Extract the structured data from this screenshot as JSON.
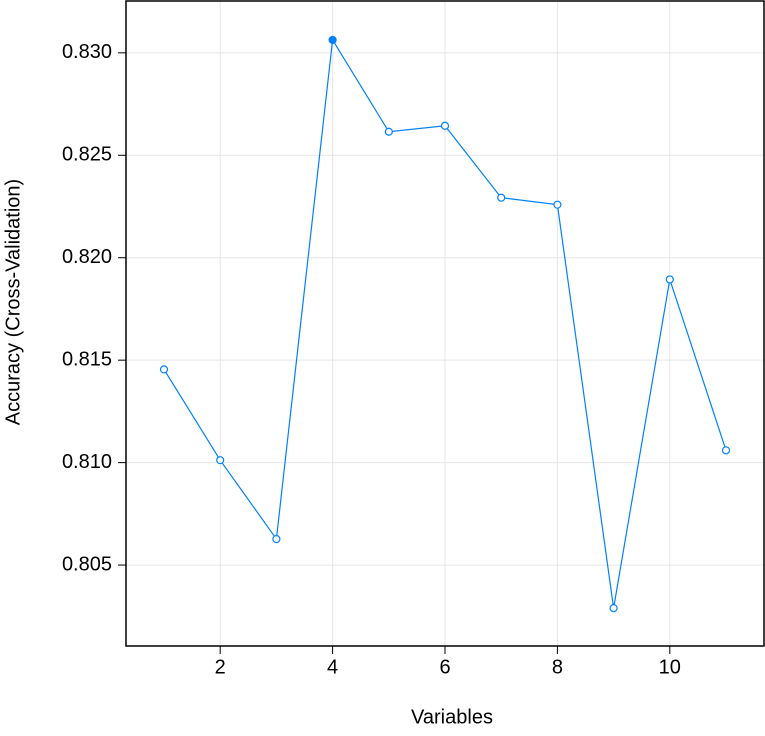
{
  "chart_data": {
    "type": "line",
    "x_label": "Variables",
    "y_label": "Accuracy (Cross-Validation)",
    "x": [
      1,
      2,
      3,
      4,
      5,
      6,
      7,
      8,
      9,
      10,
      11
    ],
    "series": [
      {
        "color": "#0080ff",
        "values": [
          0.81455,
          0.81012,
          0.80627,
          0.83063,
          0.82615,
          0.82644,
          0.82293,
          0.82259,
          0.8029,
          0.81894,
          0.8106
        ],
        "marker_filled": [
          false,
          false,
          false,
          true,
          false,
          false,
          false,
          false,
          false,
          false,
          false
        ]
      }
    ],
    "xlim": [
      0.324,
      11.676
    ],
    "xticks": [
      2,
      4,
      6,
      8,
      10
    ],
    "ylim": [
      0.80105,
      0.83253
    ],
    "yticks": [
      0.805,
      {
        "value": 0.81,
        "label": "0.810"
      },
      0.815,
      {
        "value": 0.82,
        "label": "0.820"
      },
      0.825,
      {
        "value": 0.83,
        "label": "0.830"
      }
    ],
    "grid": true
  }
}
